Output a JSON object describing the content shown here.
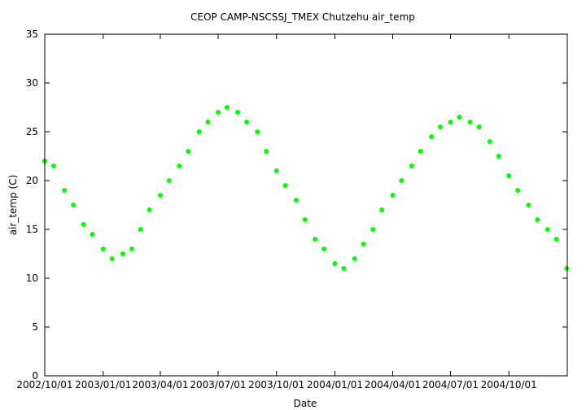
{
  "chart_data": {
    "type": "scatter",
    "title": "CEOP CAMP-NSCSSJ_TMEX Chutzehu  air_temp",
    "xlabel": "Date",
    "ylabel": "air_temp (C)",
    "x_ticks": [
      "2002/10/01",
      "2003/01/01",
      "2003/04/01",
      "2003/07/01",
      "2003/10/01",
      "2004/01/01",
      "2004/04/01",
      "2004/07/01",
      "2004/10/01"
    ],
    "xlim": [
      "2002/10/01",
      "2005/01/01"
    ],
    "ylim": [
      0,
      35
    ],
    "y_ticks": [
      0,
      5,
      10,
      15,
      20,
      25,
      30,
      35
    ],
    "grid": false,
    "series_color": "#00ff00",
    "series": [
      {
        "points": [
          [
            "2002/10/01",
            22.0
          ],
          [
            "2002/10/15",
            21.5
          ],
          [
            "2002/11/01",
            19.0
          ],
          [
            "2002/11/15",
            17.5
          ],
          [
            "2002/12/01",
            15.5
          ],
          [
            "2002/12/15",
            14.5
          ],
          [
            "2003/01/01",
            13.0
          ],
          [
            "2003/01/15",
            12.0
          ],
          [
            "2003/02/01",
            12.5
          ],
          [
            "2003/02/15",
            13.0
          ],
          [
            "2003/03/01",
            15.0
          ],
          [
            "2003/03/15",
            17.0
          ],
          [
            "2003/04/01",
            18.5
          ],
          [
            "2003/04/15",
            20.0
          ],
          [
            "2003/05/01",
            21.5
          ],
          [
            "2003/05/15",
            23.0
          ],
          [
            "2003/06/01",
            25.0
          ],
          [
            "2003/06/15",
            26.0
          ],
          [
            "2003/07/01",
            27.0
          ],
          [
            "2003/07/15",
            27.5
          ],
          [
            "2003/08/01",
            27.0
          ],
          [
            "2003/08/15",
            26.0
          ],
          [
            "2003/09/01",
            25.0
          ],
          [
            "2003/09/15",
            23.0
          ],
          [
            "2003/10/01",
            21.0
          ],
          [
            "2003/10/15",
            19.5
          ],
          [
            "2003/11/01",
            18.0
          ],
          [
            "2003/11/15",
            16.0
          ],
          [
            "2003/12/01",
            14.0
          ],
          [
            "2003/12/15",
            13.0
          ],
          [
            "2004/01/01",
            11.5
          ],
          [
            "2004/01/15",
            11.0
          ],
          [
            "2004/02/01",
            12.0
          ],
          [
            "2004/02/15",
            13.5
          ],
          [
            "2004/03/01",
            15.0
          ],
          [
            "2004/03/15",
            17.0
          ],
          [
            "2004/04/01",
            18.5
          ],
          [
            "2004/04/15",
            20.0
          ],
          [
            "2004/05/01",
            21.5
          ],
          [
            "2004/05/15",
            23.0
          ],
          [
            "2004/06/01",
            24.5
          ],
          [
            "2004/06/15",
            25.5
          ],
          [
            "2004/07/01",
            26.0
          ],
          [
            "2004/07/15",
            26.5
          ],
          [
            "2004/08/01",
            26.0
          ],
          [
            "2004/08/15",
            25.5
          ],
          [
            "2004/09/01",
            24.0
          ],
          [
            "2004/09/15",
            22.5
          ],
          [
            "2004/10/01",
            20.5
          ],
          [
            "2004/10/15",
            19.0
          ],
          [
            "2004/11/01",
            17.5
          ],
          [
            "2004/11/15",
            16.0
          ],
          [
            "2004/12/01",
            15.0
          ],
          [
            "2004/12/15",
            14.0
          ],
          [
            "2004/12/31",
            11.0
          ]
        ]
      }
    ]
  }
}
